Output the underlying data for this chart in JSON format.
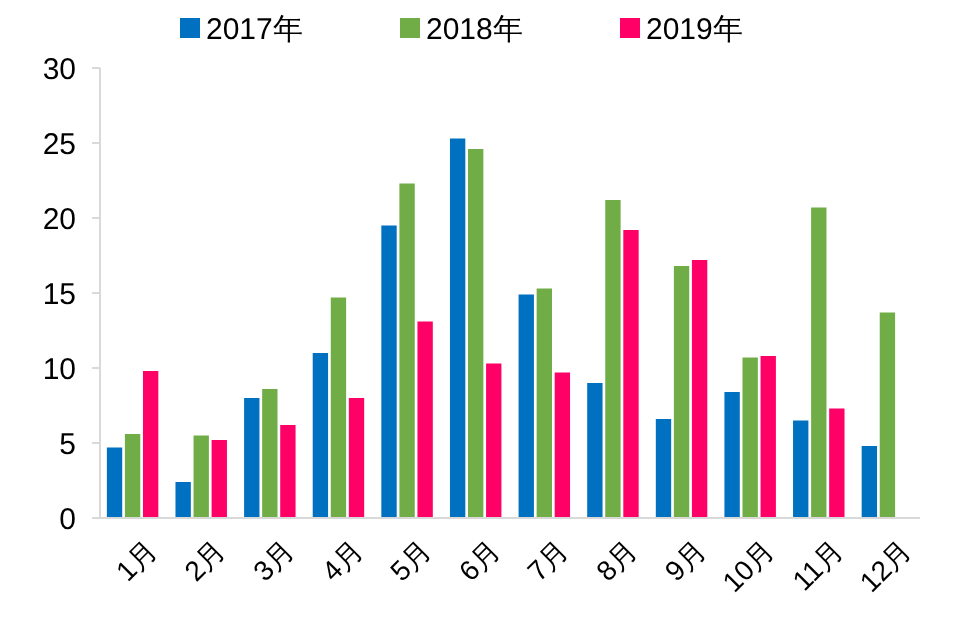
{
  "chart_data": {
    "type": "bar",
    "categories": [
      "1月",
      "2月",
      "3月",
      "4月",
      "5月",
      "6月",
      "7月",
      "8月",
      "9月",
      "10月",
      "11月",
      "12月"
    ],
    "series": [
      {
        "name": "2017年",
        "color": "#0070c0",
        "values": [
          4.7,
          2.4,
          8,
          11,
          19.5,
          25.3,
          14.9,
          9,
          6.6,
          8.4,
          6.5,
          4.8
        ]
      },
      {
        "name": "2018年",
        "color": "#70ad47",
        "values": [
          5.6,
          5.5,
          8.6,
          14.7,
          22.3,
          24.6,
          15.3,
          21.2,
          16.8,
          10.7,
          20.7,
          13.7
        ]
      },
      {
        "name": "2019年",
        "color": "#ff0066",
        "values": [
          9.8,
          5.2,
          6.2,
          8,
          13.1,
          10.3,
          9.7,
          19.2,
          17.2,
          10.8,
          7.3,
          null
        ]
      }
    ],
    "ylim": [
      0,
      30
    ],
    "yticks": [
      0,
      5,
      10,
      15,
      20,
      25,
      30
    ],
    "grid": false,
    "legend": "top"
  }
}
